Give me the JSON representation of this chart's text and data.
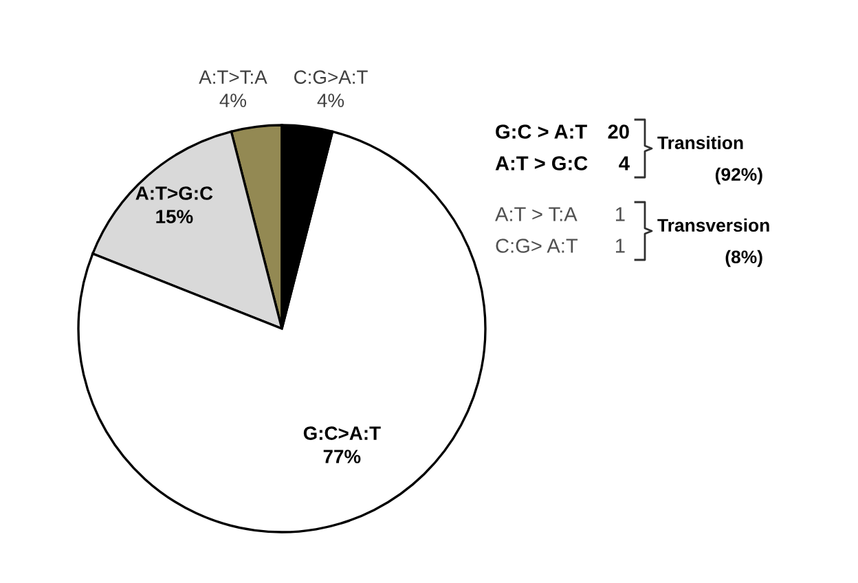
{
  "chart_data": {
    "type": "pie",
    "categories": [
      "A:T>T:A",
      "A:T>G:C",
      "G:C>A:T",
      "C:G>A:T"
    ],
    "values": [
      4,
      15,
      77,
      4
    ],
    "value_labels": [
      "4%",
      "15%",
      "77%",
      "4%"
    ],
    "colors": [
      "#938953",
      "#d9d9d9",
      "#ffffff",
      "#000000"
    ],
    "annotations": [
      "G:C > A:T",
      "20",
      "A:T > G:C",
      "4",
      "Transition",
      "(92%)",
      "A:T > T:A",
      "1",
      "C:G> A:T",
      "1",
      "Transversion",
      "(8%)"
    ]
  }
}
